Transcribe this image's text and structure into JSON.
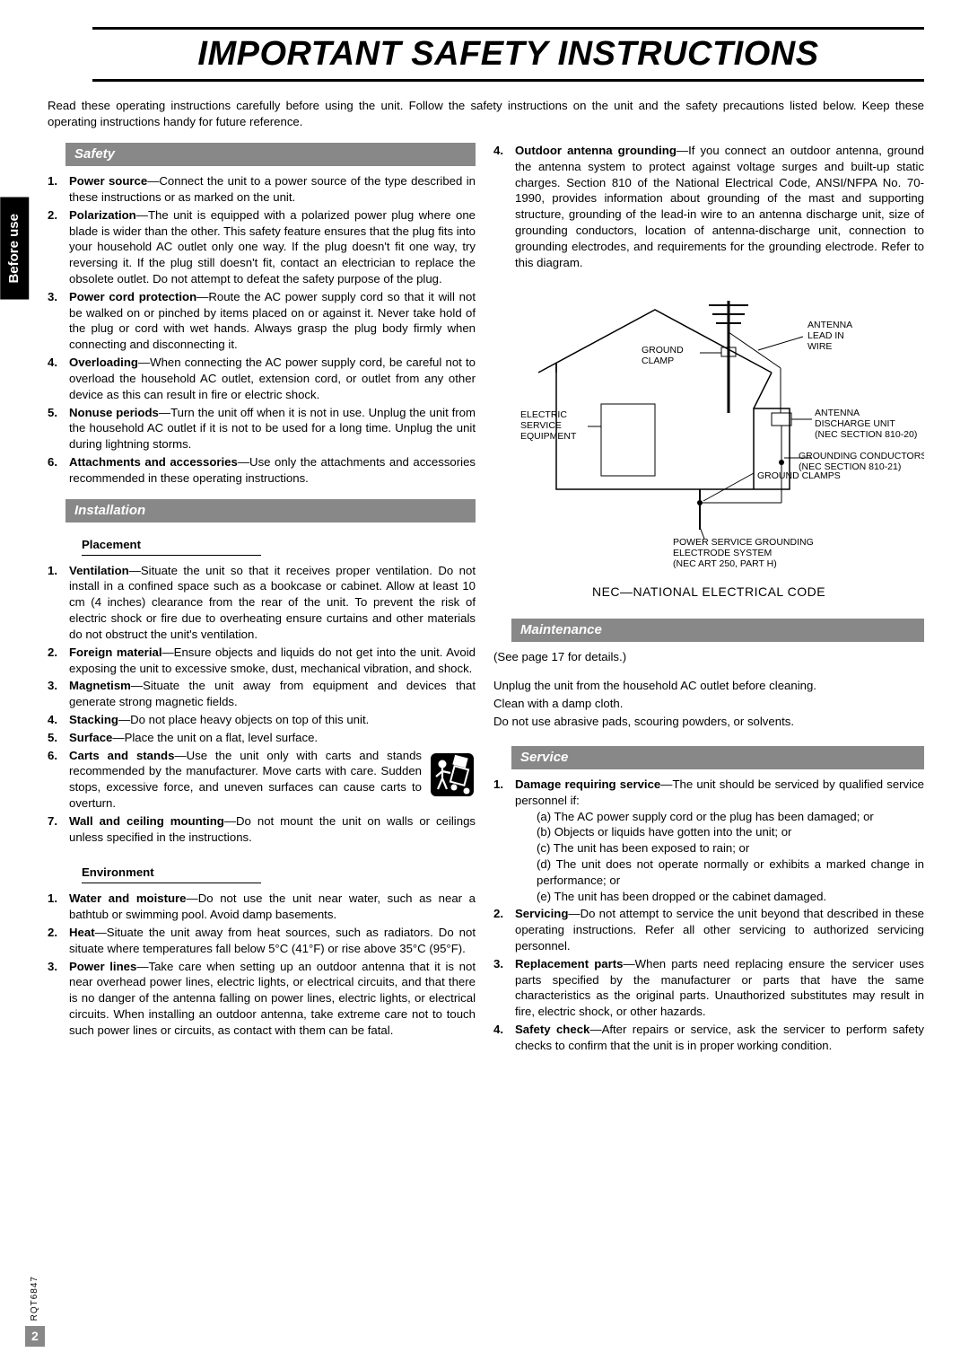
{
  "page": {
    "title": "IMPORTANT SAFETY INSTRUCTIONS",
    "title_fontsize": 38,
    "intro": "Read these operating instructions carefully before using the unit. Follow the safety instructions on the unit and the safety precautions listed below. Keep these operating instructions handy for future reference.",
    "side_tab": "Before use",
    "doc_code": "RQT6847",
    "page_number": "2",
    "colors": {
      "header_bg": "#888888",
      "header_fg": "#ffffff",
      "tab_bg": "#000000"
    }
  },
  "safety": {
    "header": "Safety",
    "items": [
      {
        "num": "1.",
        "term": "Power source",
        "text": "—Connect the unit to a power source of the type described in these instructions or as marked on the unit."
      },
      {
        "num": "2.",
        "term": "Polarization",
        "text": "—The unit is equipped with a polarized power plug where one blade is wider than the other. This safety feature ensures that the plug fits into your household AC outlet only one way. If the plug doesn't fit one way, try reversing it. If the plug still doesn't fit, contact an electrician to replace the obsolete outlet. Do not attempt to defeat the safety purpose of the plug."
      },
      {
        "num": "3.",
        "term": "Power cord protection",
        "text": "—Route the AC power supply cord so that it will not be walked on or pinched by items placed on or against it. Never take hold of the plug or cord with wet hands. Always grasp the plug body firmly when connecting and disconnecting it."
      },
      {
        "num": "4.",
        "term": "Overloading",
        "text": "—When connecting the AC power supply cord, be careful not to overload the household AC outlet, extension cord, or outlet from any other device as this can result in fire or electric shock."
      },
      {
        "num": "5.",
        "term": "Nonuse periods",
        "text": "—Turn the unit off when it is not in use. Unplug the unit from the household AC outlet if it is not to be used for a long time. Unplug the unit during lightning storms."
      },
      {
        "num": "6.",
        "term": "Attachments and accessories",
        "text": "—Use only the attachments and accessories recommended in these operating instructions."
      }
    ]
  },
  "installation": {
    "header": "Installation",
    "placement_header": "Placement",
    "placement": [
      {
        "num": "1.",
        "term": "Ventilation",
        "text": "—Situate the unit so that it receives proper ventilation. Do not install in a confined space such as a bookcase or cabinet. Allow at least 10 cm (4 inches) clearance from the rear of the unit. To prevent the risk of electric shock or fire due to overheating ensure curtains and other materials do not obstruct the unit's ventilation."
      },
      {
        "num": "2.",
        "term": "Foreign material",
        "text": "—Ensure objects and liquids do not get into the unit. Avoid exposing the unit to excessive smoke, dust, mechanical vibration, and shock."
      },
      {
        "num": "3.",
        "term": "Magnetism",
        "text": "—Situate the unit away from equipment and devices that generate strong magnetic fields."
      },
      {
        "num": "4.",
        "term": "Stacking",
        "text": "—Do not place heavy objects on top of this unit."
      },
      {
        "num": "5.",
        "term": "Surface",
        "text": "—Place the unit on a flat, level surface."
      },
      {
        "num": "6.",
        "term": "Carts and stands",
        "text": "—Use the unit only with carts and stands recommended by the manufacturer. Move carts with care. Sudden stops, excessive force, and uneven surfaces can cause carts to overturn.",
        "has_icon": true
      },
      {
        "num": "7.",
        "term": "Wall and ceiling mounting",
        "text": "—Do not mount the unit on walls or ceilings unless specified in the instructions."
      }
    ],
    "environment_header": "Environment",
    "environment": [
      {
        "num": "1.",
        "term": "Water and moisture",
        "text": "—Do not use the unit near water, such as near a bathtub or swimming pool. Avoid damp basements."
      },
      {
        "num": "2.",
        "term": "Heat",
        "text": "—Situate the unit away from heat sources, such as radiators. Do not situate where temperatures fall below 5°C (41°F) or rise above 35°C (95°F)."
      },
      {
        "num": "3.",
        "term": "Power lines",
        "text": "—Take care when setting up an outdoor antenna that it is not near overhead power lines, electric lights, or electrical circuits, and that there is no danger of the antenna falling on power lines, electric lights, or electrical circuits. When installing an outdoor antenna, take extreme care not to touch such power lines or circuits, as contact with them can be fatal."
      }
    ]
  },
  "right_top": {
    "num": "4.",
    "term": "Outdoor antenna grounding",
    "text": "—If you connect an outdoor antenna, ground the antenna system to protect against voltage surges and built-up static charges. Section 810 of the National Electrical Code, ANSI/NFPA No. 70-1990, provides information about grounding of the mast and supporting structure, grounding of the lead-in wire to an antenna discharge unit, size of grounding conductors, location of antenna-discharge unit, connection to grounding electrodes, and requirements for the grounding electrode. Refer to this diagram."
  },
  "diagram": {
    "labels": {
      "antenna_lead": "ANTENNA LEAD IN WIRE",
      "ground_clamp": "GROUND CLAMP",
      "antenna_discharge": "ANTENNA DISCHARGE UNIT (NEC SECTION 810-20)",
      "electric_service": "ELECTRIC SERVICE EQUIPMENT",
      "grounding_conductors": "GROUNDING CONDUCTORS (NEC SECTION 810-21)",
      "ground_clamps2": "GROUND CLAMPS",
      "power_service": "POWER SERVICE GROUNDING ELECTRODE SYSTEM (NEC ART 250, PART H)"
    },
    "caption": "NEC—NATIONAL ELECTRICAL CODE"
  },
  "maintenance": {
    "header": "Maintenance",
    "see_page": "(See page 17 for details.)",
    "lines": [
      "Unplug the unit from the household AC outlet before cleaning.",
      "Clean with a damp cloth.",
      "Do not use abrasive pads, scouring powders, or solvents."
    ]
  },
  "service": {
    "header": "Service",
    "items": [
      {
        "num": "1.",
        "term": "Damage requiring service",
        "text": "—The unit should be serviced by qualified service personnel if:",
        "subs": [
          "(a) The AC power supply cord or the plug has been damaged; or",
          "(b) Objects or liquids have gotten into the unit; or",
          "(c) The unit has been exposed to rain; or",
          "(d) The unit does not operate normally or exhibits a marked change in performance; or",
          "(e) The unit has been dropped or the cabinet damaged."
        ]
      },
      {
        "num": "2.",
        "term": "Servicing",
        "text": "—Do not attempt to service the unit beyond that described in these operating instructions. Refer all other servicing to authorized servicing personnel."
      },
      {
        "num": "3.",
        "term": "Replacement parts",
        "text": "—When parts need replacing ensure the servicer uses parts specified by the manufacturer or parts that have the same characteristics as the original parts. Unauthorized substitutes may result in fire, electric shock, or other hazards."
      },
      {
        "num": "4.",
        "term": "Safety check",
        "text": "—After repairs or service, ask the servicer to perform safety checks to confirm that the unit is in proper working condition."
      }
    ]
  }
}
